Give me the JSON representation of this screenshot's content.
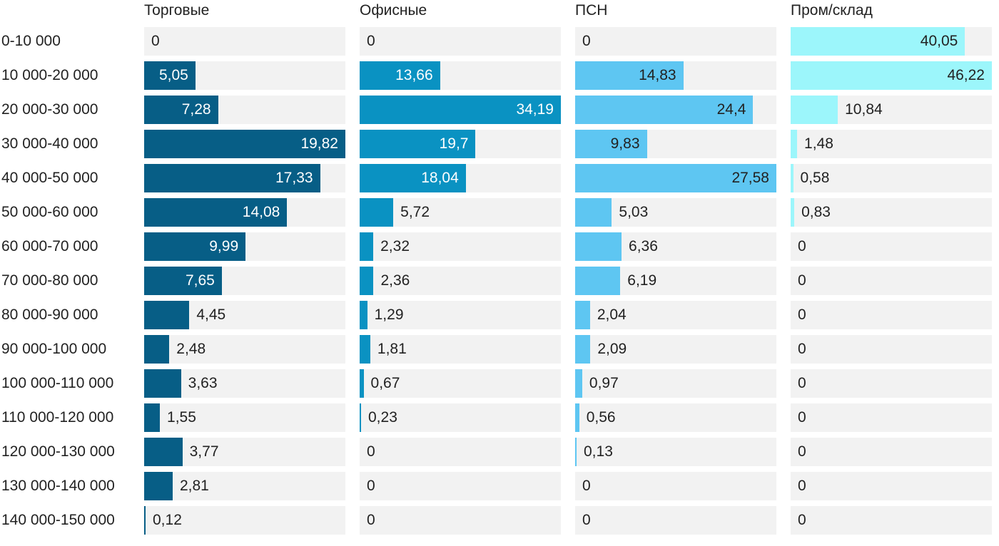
{
  "chart_data": {
    "type": "bar",
    "orientation": "horizontal",
    "categories": [
      "0-10 000",
      "10 000-20 000",
      "20 000-30 000",
      "30 000-40 000",
      "40 000-50 000",
      "50 000-60 000",
      "60 000-70 000",
      "70 000-80 000",
      "80 000-90 000",
      "90 000-100 000",
      "100 000-110 000",
      "110 000-120 000",
      "120 000-130 000",
      "130 000-140 000",
      "140 000-150 000"
    ],
    "series": [
      {
        "name": "Торговые",
        "color": "#075e86",
        "text_inside": "#ffffff",
        "values": [
          0,
          5.05,
          7.28,
          19.82,
          17.33,
          14.08,
          9.99,
          7.65,
          4.45,
          2.48,
          3.63,
          1.55,
          3.77,
          2.81,
          0.12
        ],
        "labels": [
          "0",
          "5,05",
          "7,28",
          "19,82",
          "17,33",
          "14,08",
          "9,99",
          "7,65",
          "4,45",
          "2,48",
          "3,63",
          "1,55",
          "3,77",
          "2,81",
          "0,12"
        ]
      },
      {
        "name": "Офисные",
        "color": "#0a92c2",
        "text_inside": "#ffffff",
        "values": [
          0,
          13.66,
          34.19,
          19.7,
          18.04,
          5.72,
          2.32,
          2.36,
          1.29,
          1.81,
          0.67,
          0.23,
          0,
          0,
          0
        ],
        "labels": [
          "0",
          "13,66",
          "34,19",
          "19,7",
          "18,04",
          "5,72",
          "2,32",
          "2,36",
          "1,29",
          "1,81",
          "0,67",
          "0,23",
          "0",
          "0",
          "0"
        ]
      },
      {
        "name": "ПСН",
        "color": "#5ec6f2",
        "text_inside": "#222222",
        "values": [
          0,
          14.83,
          24.4,
          9.83,
          27.58,
          5.03,
          6.36,
          6.19,
          2.04,
          2.09,
          0.97,
          0.56,
          0.13,
          0,
          0
        ],
        "labels": [
          "0",
          "14,83",
          "24,4",
          "9,83",
          "27,58",
          "5,03",
          "6,36",
          "6,19",
          "2,04",
          "2,09",
          "0,97",
          "0,56",
          "0,13",
          "0",
          "0"
        ]
      },
      {
        "name": "Пром/склад",
        "color": "#9cf6fb",
        "text_inside": "#222222",
        "values": [
          40.05,
          46.22,
          10.84,
          1.48,
          0.58,
          0.83,
          0,
          0,
          0,
          0,
          0,
          0,
          0,
          0,
          0
        ],
        "labels": [
          "40,05",
          "46,22",
          "10,84",
          "1,48",
          "0,58",
          "0,83",
          "0",
          "0",
          "0",
          "0",
          "0",
          "0",
          "0",
          "0",
          "0"
        ]
      }
    ],
    "track_color": "#f2f2f2",
    "grid": false,
    "legend": "none"
  }
}
